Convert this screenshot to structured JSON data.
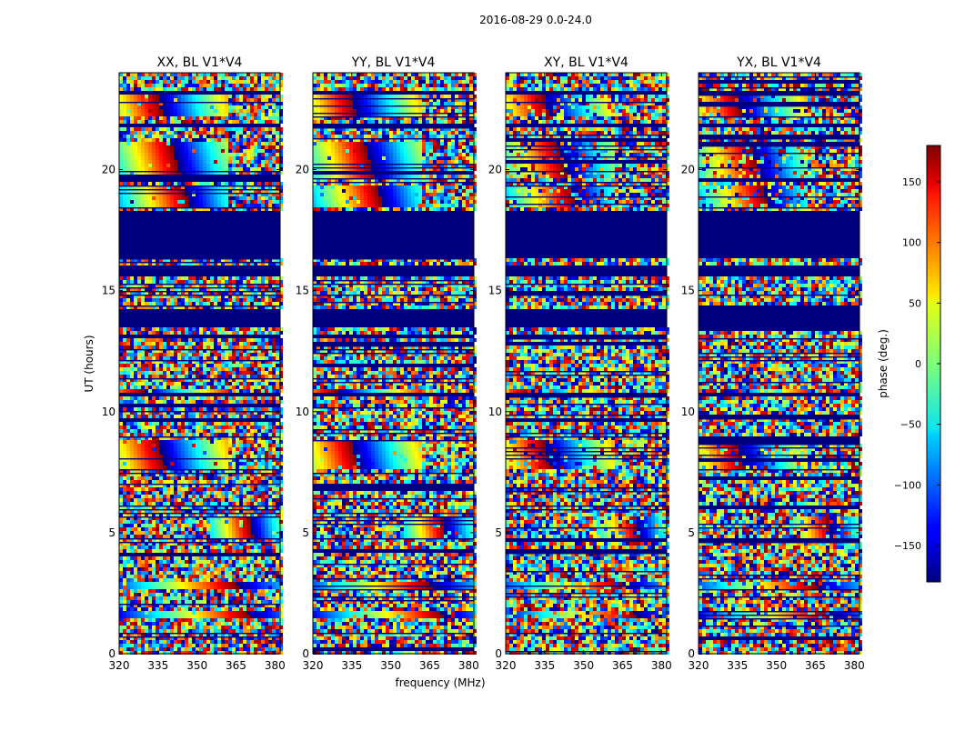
{
  "suptitle": "2016-08-29 0.0-24.0",
  "chart_data": {
    "type": "heatmap",
    "suptitle": "2016-08-29 0.0-24.0",
    "xlabel": "frequency (MHz)",
    "ylabel": "UT (hours)",
    "xlim": [
      320,
      382
    ],
    "ylim": [
      0,
      24
    ],
    "x_ticks": [
      "320",
      "335",
      "350",
      "365",
      "380"
    ],
    "y_ticks": [
      "0",
      "5",
      "10",
      "15",
      "20"
    ],
    "colormap": "jet",
    "colorbar": {
      "label": "phase (deg.)",
      "range": [
        -180,
        180
      ],
      "ticks": [
        "150",
        "100",
        "50",
        "0",
        "−50",
        "−100",
        "−150"
      ],
      "tick_values": [
        150,
        100,
        50,
        0,
        -50,
        -100,
        -150
      ]
    },
    "panels": [
      {
        "title": "XX, BL V1*V4",
        "strength": 1.0
      },
      {
        "title": "YY, BL V1*V4",
        "strength": 1.0
      },
      {
        "title": "XY, BL V1*V4",
        "strength": 0.45
      },
      {
        "title": "YX, BL V1*V4",
        "strength": 0.45
      }
    ],
    "flagged_ut_ranges": [
      [
        16.4,
        18.3
      ],
      [
        13.5,
        14.3
      ],
      [
        15.6,
        16.1
      ],
      [
        23.1,
        23.2
      ],
      [
        21.7,
        21.95
      ],
      [
        17.05,
        17.15
      ],
      [
        10.65,
        10.8
      ]
    ],
    "coherent_bands": [
      {
        "ut": [
          22.2,
          23.1
        ],
        "freq": [
          320,
          362
        ]
      },
      {
        "ut": [
          19.7,
          21.2
        ],
        "freq": [
          320,
          362
        ]
      },
      {
        "ut": [
          18.4,
          19.3
        ],
        "freq": [
          320,
          362
        ]
      },
      {
        "ut": [
          16.4,
          17.1
        ],
        "freq": [
          320,
          362
        ]
      },
      {
        "ut": [
          13.7,
          14.0
        ],
        "freq": [
          320,
          362
        ]
      },
      {
        "ut": [
          10.8,
          11.0
        ],
        "freq": [
          320,
          362
        ]
      },
      {
        "ut": [
          7.6,
          8.8
        ],
        "freq": [
          320,
          362
        ]
      },
      {
        "ut": [
          4.8,
          5.6
        ],
        "freq": [
          355,
          382
        ]
      },
      {
        "ut": [
          2.7,
          2.9
        ],
        "freq": [
          320,
          382
        ]
      },
      {
        "ut": [
          1.5,
          1.8
        ],
        "freq": [
          320,
          382
        ]
      }
    ]
  }
}
